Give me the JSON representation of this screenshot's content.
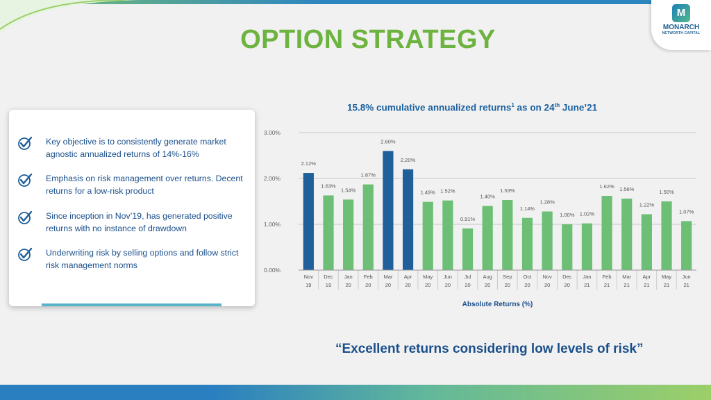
{
  "logo": {
    "mark": "M",
    "name": "MONARCH",
    "sub": "NETWORTH CAPITAL"
  },
  "page_title": "OPTION STRATEGY",
  "bullets": [
    "Key objective is to consistently generate market agnostic annualized returns of 14%-16%",
    "Emphasis on risk management over returns. Decent returns for a low-risk product",
    "Since inception in Nov’19, has generated positive returns with no instance of drawdown",
    "Underwriting risk by selling options and follow strict risk management norms"
  ],
  "chart_title": {
    "main": "15.8% cumulative annualized returns",
    "sup1": "1",
    "mid": " as on 24",
    "sup2": "th",
    "end": " June’21"
  },
  "quote": "“Excellent returns considering low levels of risk”",
  "colors": {
    "highlight": "#1f5f9a",
    "normal": "#6cbf74",
    "title": "#6db33f",
    "text": "#1a4f8b"
  },
  "chart_data": {
    "type": "bar",
    "categories": [
      [
        "Nov",
        "19"
      ],
      [
        "Dec",
        "19"
      ],
      [
        "Jan",
        "20"
      ],
      [
        "Feb",
        "20"
      ],
      [
        "Mar",
        "20"
      ],
      [
        "Apr",
        "20"
      ],
      [
        "May",
        "20"
      ],
      [
        "Jun",
        "20"
      ],
      [
        "Jul",
        "20"
      ],
      [
        "Aug",
        "20"
      ],
      [
        "Sep",
        "20"
      ],
      [
        "Oct",
        "20"
      ],
      [
        "Nov",
        "20"
      ],
      [
        "Dec",
        "20"
      ],
      [
        "Jan",
        "21"
      ],
      [
        "Feb",
        "21"
      ],
      [
        "Mar",
        "21"
      ],
      [
        "Apr",
        "21"
      ],
      [
        "May",
        "21"
      ],
      [
        "Jun",
        "21"
      ]
    ],
    "values": [
      2.12,
      1.63,
      1.54,
      1.87,
      2.6,
      2.2,
      1.49,
      1.52,
      0.91,
      1.4,
      1.53,
      1.14,
      1.28,
      1.0,
      1.02,
      1.62,
      1.56,
      1.22,
      1.5,
      1.07
    ],
    "labels": [
      "2.12%",
      "1.63%",
      "1.54%",
      "1.87%",
      "2.60%",
      "2.20%",
      "1.49%",
      "1.52%",
      "0.91%",
      "1.40%",
      "1.53%",
      "1.14%",
      "1.28%",
      "1.00%",
      "1.02%",
      "1.62%",
      "1.56%",
      "1.22%",
      "1.50%",
      "1.07%"
    ],
    "highlight": [
      0,
      4,
      5
    ],
    "xlabel": "Absolute Returns (%)",
    "ylabel": "",
    "ylim": [
      0,
      3
    ],
    "yticks": [
      0,
      1,
      2,
      3
    ],
    "ytick_labels": [
      "0.00%",
      "1.00%",
      "2.00%",
      "3.00%"
    ],
    "grid": true,
    "legend": "none"
  }
}
